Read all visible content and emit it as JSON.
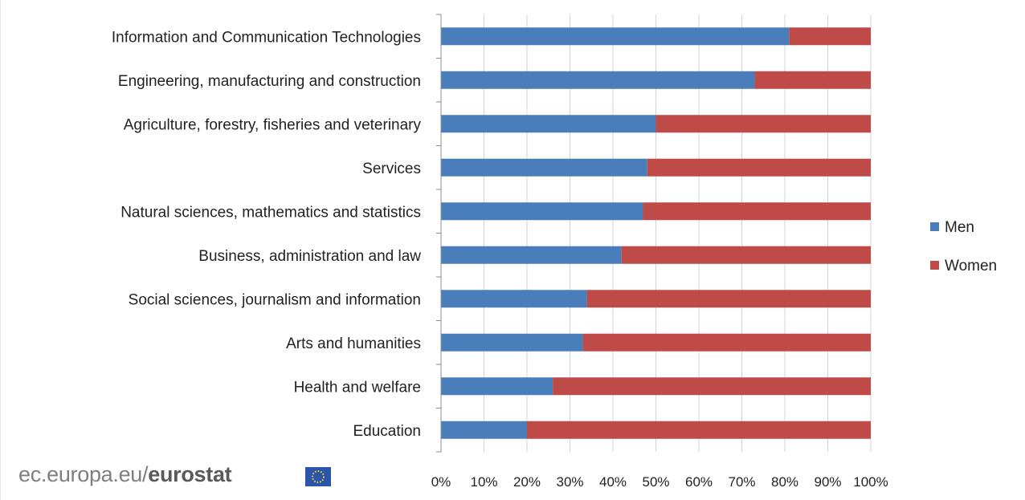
{
  "chart_data": {
    "type": "bar",
    "orientation": "horizontal",
    "stacked": "100%",
    "categories": [
      "Information and Communication Technologies",
      "Engineering, manufacturing and construction",
      "Agriculture, forestry, fisheries and veterinary",
      "Services",
      "Natural sciences, mathematics and statistics",
      "Business, administration and law",
      "Social sciences, journalism and information",
      "Arts and humanities",
      "Health and welfare",
      "Education"
    ],
    "series": [
      {
        "name": "Men",
        "color": "#4a7ebb",
        "values": [
          81,
          73,
          50,
          48,
          47,
          42,
          34,
          33,
          26,
          20
        ]
      },
      {
        "name": "Women",
        "color": "#be4b48",
        "values": [
          19,
          27,
          50,
          52,
          53,
          58,
          66,
          67,
          74,
          80
        ]
      }
    ],
    "xlim": [
      0,
      100
    ],
    "x_ticks": [
      "0%",
      "10%",
      "20%",
      "30%",
      "40%",
      "50%",
      "60%",
      "70%",
      "80%",
      "90%",
      "100%"
    ],
    "grid": true,
    "legend": "right"
  },
  "source": {
    "text": "ec.europa.eu/",
    "brand": "eurostat"
  }
}
